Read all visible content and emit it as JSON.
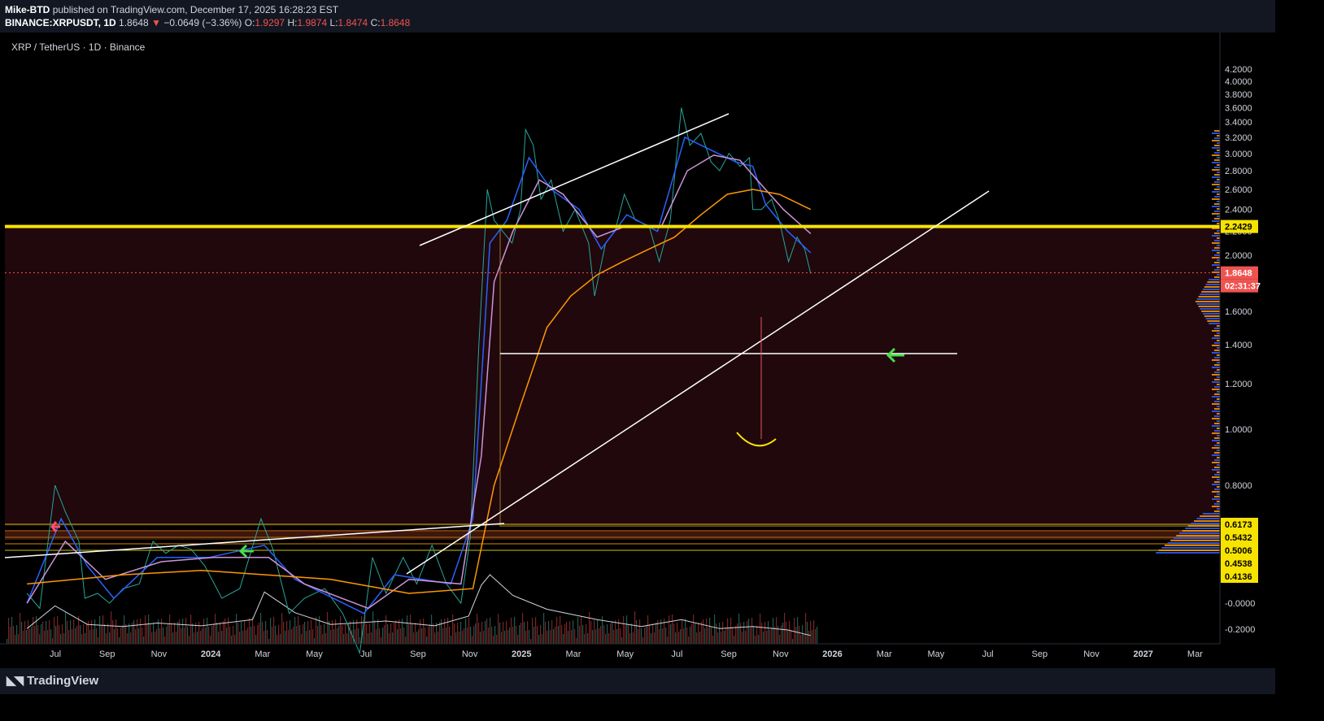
{
  "header": {
    "author": "Mike-BTD",
    "published_text": "published on TradingView.com, December 17, 2025 16:28:23 EST",
    "symbol": "BINANCE:XRPUSDT, 1D",
    "last": "1.8648",
    "arrow": "▼",
    "change": "−0.0649 (−3.36%)",
    "o_label": "O:",
    "o_value": "1.9297",
    "h_label": "H:",
    "h_value": "1.9874",
    "l_label": "L:",
    "l_value": "1.8474",
    "c_label": "C:",
    "c_value": "1.8648"
  },
  "chart_data": {
    "type": "line",
    "title": "XRP / TetherUS · 1D · Binance",
    "y_scale": "log",
    "y_ticks": [
      "4.2000",
      "4.0000",
      "3.8000",
      "3.6000",
      "3.4000",
      "3.2000",
      "3.0000",
      "2.8000",
      "2.6000",
      "2.4000",
      "2.2000",
      "2.0000",
      "1.6000",
      "1.4000",
      "1.2000",
      "1.0000",
      "0.8000"
    ],
    "volume_ticks": [
      "-0.0000",
      "-0.2000"
    ],
    "x_ticks": [
      "Jul",
      "Sep",
      "Nov",
      "2024",
      "Mar",
      "May",
      "Jul",
      "Sep",
      "Nov",
      "2025",
      "Mar",
      "May",
      "Jul",
      "Sep",
      "Nov",
      "2026",
      "Mar",
      "May",
      "Jul",
      "Sep",
      "Nov",
      "2027",
      "Mar"
    ],
    "price_labels": [
      {
        "text": "2.2429",
        "color": "#f7e300"
      },
      {
        "text": "1.8648",
        "color": "#ef5350"
      },
      {
        "text": "02:31:37",
        "color": "#ef5350"
      },
      {
        "text": "0.6173",
        "color": "#f7e300"
      },
      {
        "text": "0.5432",
        "color": "#f7e300"
      },
      {
        "text": "0.5006",
        "color": "#f7e300"
      },
      {
        "text": "0.4538",
        "color": "#f7e300"
      },
      {
        "text": "0.4136",
        "color": "#f7e300"
      }
    ],
    "series": [
      {
        "name": "",
        "color": "#26a69a",
        "points": [
          [
            "2023-06-10",
            0.52
          ],
          [
            "2023-06-25",
            0.49
          ],
          [
            "2023-07-13",
            0.8
          ],
          [
            "2023-07-25",
            0.72
          ],
          [
            "2023-08-10",
            0.64
          ],
          [
            "2023-08-17",
            0.51
          ],
          [
            "2023-09-01",
            0.52
          ],
          [
            "2023-09-15",
            0.5
          ],
          [
            "2023-10-01",
            0.53
          ],
          [
            "2023-10-20",
            0.54
          ],
          [
            "2023-11-05",
            0.64
          ],
          [
            "2023-11-20",
            0.61
          ],
          [
            "2023-12-05",
            0.63
          ],
          [
            "2023-12-20",
            0.62
          ],
          [
            "2024-01-05",
            0.58
          ],
          [
            "2024-01-25",
            0.51
          ],
          [
            "2024-02-15",
            0.53
          ],
          [
            "2024-03-11",
            0.7
          ],
          [
            "2024-03-25",
            0.62
          ],
          [
            "2024-04-13",
            0.48
          ],
          [
            "2024-05-01",
            0.51
          ],
          [
            "2024-05-25",
            0.53
          ],
          [
            "2024-06-15",
            0.48
          ],
          [
            "2024-07-05",
            0.41
          ],
          [
            "2024-07-20",
            0.6
          ],
          [
            "2024-08-05",
            0.52
          ],
          [
            "2024-08-25",
            0.6
          ],
          [
            "2024-09-10",
            0.54
          ],
          [
            "2024-09-28",
            0.63
          ],
          [
            "2024-10-15",
            0.54
          ],
          [
            "2024-11-01",
            0.5
          ],
          [
            "2024-11-12",
            0.65
          ],
          [
            "2024-11-22",
            1.4
          ],
          [
            "2024-12-02",
            2.6
          ],
          [
            "2024-12-10",
            2.3
          ],
          [
            "2024-12-20",
            2.2
          ],
          [
            "2024-12-31",
            2.1
          ],
          [
            "2025-01-10",
            2.4
          ],
          [
            "2025-01-16",
            3.3
          ],
          [
            "2025-01-25",
            3.1
          ],
          [
            "2025-02-03",
            2.5
          ],
          [
            "2025-02-15",
            2.7
          ],
          [
            "2025-03-01",
            2.2
          ],
          [
            "2025-03-15",
            2.4
          ],
          [
            "2025-03-31",
            2.1
          ],
          [
            "2025-04-07",
            1.7
          ],
          [
            "2025-04-20",
            2.1
          ],
          [
            "2025-05-01",
            2.2
          ],
          [
            "2025-05-12",
            2.55
          ],
          [
            "2025-05-25",
            2.3
          ],
          [
            "2025-06-10",
            2.25
          ],
          [
            "2025-06-22",
            1.95
          ],
          [
            "2025-07-05",
            2.3
          ],
          [
            "2025-07-18",
            3.6
          ],
          [
            "2025-07-28",
            3.1
          ],
          [
            "2025-08-10",
            3.25
          ],
          [
            "2025-08-22",
            2.9
          ],
          [
            "2025-09-01",
            2.8
          ],
          [
            "2025-09-12",
            3.0
          ],
          [
            "2025-09-25",
            2.85
          ],
          [
            "2025-10-06",
            2.95
          ],
          [
            "2025-10-10",
            2.4
          ],
          [
            "2025-10-20",
            2.4
          ],
          [
            "2025-11-01",
            2.5
          ],
          [
            "2025-11-10",
            2.3
          ],
          [
            "2025-11-21",
            1.95
          ],
          [
            "2025-12-01",
            2.15
          ],
          [
            "2025-12-10",
            2.05
          ],
          [
            "2025-12-17",
            1.86
          ]
        ]
      },
      {
        "name": "",
        "color": "#2962ff",
        "points": [
          [
            "2023-06-10",
            0.5
          ],
          [
            "2023-07-20",
            0.7
          ],
          [
            "2023-08-20",
            0.58
          ],
          [
            "2023-09-20",
            0.51
          ],
          [
            "2023-11-10",
            0.6
          ],
          [
            "2024-01-10",
            0.6
          ],
          [
            "2024-03-15",
            0.63
          ],
          [
            "2024-04-20",
            0.55
          ],
          [
            "2024-07-10",
            0.48
          ],
          [
            "2024-08-15",
            0.56
          ],
          [
            "2024-10-20",
            0.54
          ],
          [
            "2024-11-15",
            0.7
          ],
          [
            "2024-12-05",
            2.1
          ],
          [
            "2024-12-25",
            2.3
          ],
          [
            "2025-01-20",
            2.95
          ],
          [
            "2025-02-15",
            2.6
          ],
          [
            "2025-03-20",
            2.4
          ],
          [
            "2025-04-15",
            2.05
          ],
          [
            "2025-05-15",
            2.35
          ],
          [
            "2025-06-20",
            2.2
          ],
          [
            "2025-07-22",
            3.2
          ],
          [
            "2025-08-20",
            3.05
          ],
          [
            "2025-09-20",
            2.9
          ],
          [
            "2025-10-10",
            2.85
          ],
          [
            "2025-10-25",
            2.45
          ],
          [
            "2025-11-20",
            2.2
          ],
          [
            "2025-12-17",
            2.02
          ]
        ]
      },
      {
        "name": "",
        "color": "#ce93d8",
        "points": [
          [
            "2023-06-10",
            0.5
          ],
          [
            "2023-07-25",
            0.64
          ],
          [
            "2023-09-10",
            0.55
          ],
          [
            "2023-11-15",
            0.59
          ],
          [
            "2024-01-15",
            0.6
          ],
          [
            "2024-03-20",
            0.6
          ],
          [
            "2024-05-01",
            0.54
          ],
          [
            "2024-07-15",
            0.49
          ],
          [
            "2024-09-01",
            0.55
          ],
          [
            "2024-11-01",
            0.54
          ],
          [
            "2024-11-25",
            0.9
          ],
          [
            "2024-12-10",
            1.8
          ],
          [
            "2025-01-01",
            2.2
          ],
          [
            "2025-02-01",
            2.7
          ],
          [
            "2025-03-01",
            2.55
          ],
          [
            "2025-04-10",
            2.15
          ],
          [
            "2025-05-15",
            2.25
          ],
          [
            "2025-06-25",
            2.25
          ],
          [
            "2025-07-25",
            2.8
          ],
          [
            "2025-08-25",
            2.98
          ],
          [
            "2025-09-25",
            2.92
          ],
          [
            "2025-10-15",
            2.7
          ],
          [
            "2025-11-15",
            2.4
          ],
          [
            "2025-12-17",
            2.18
          ]
        ]
      },
      {
        "name": "",
        "color": "#ff9800",
        "points": [
          [
            "2023-06-10",
            0.54
          ],
          [
            "2023-10-01",
            0.56
          ],
          [
            "2024-01-01",
            0.57
          ],
          [
            "2024-06-01",
            0.55
          ],
          [
            "2024-09-01",
            0.52
          ],
          [
            "2024-11-15",
            0.53
          ],
          [
            "2024-12-10",
            0.8
          ],
          [
            "2025-01-10",
            1.1
          ],
          [
            "2025-02-10",
            1.5
          ],
          [
            "2025-03-10",
            1.7
          ],
          [
            "2025-04-10",
            1.85
          ],
          [
            "2025-05-10",
            1.95
          ],
          [
            "2025-06-10",
            2.05
          ],
          [
            "2025-07-10",
            2.15
          ],
          [
            "2025-08-10",
            2.35
          ],
          [
            "2025-09-10",
            2.55
          ],
          [
            "2025-10-10",
            2.6
          ],
          [
            "2025-11-10",
            2.55
          ],
          [
            "2025-12-17",
            2.4
          ]
        ]
      }
    ],
    "volume_line": [
      [
        "2023-06-10",
        0.22
      ],
      [
        "2023-07-13",
        0.55
      ],
      [
        "2023-08-20",
        0.28
      ],
      [
        "2023-10-01",
        0.25
      ],
      [
        "2023-11-10",
        0.3
      ],
      [
        "2024-01-01",
        0.26
      ],
      [
        "2024-03-01",
        0.35
      ],
      [
        "2024-03-15",
        0.75
      ],
      [
        "2024-04-20",
        0.45
      ],
      [
        "2024-06-01",
        0.28
      ],
      [
        "2024-08-05",
        0.33
      ],
      [
        "2024-10-01",
        0.26
      ],
      [
        "2024-11-10",
        0.4
      ],
      [
        "2024-11-25",
        0.85
      ],
      [
        "2024-12-05",
        1.0
      ],
      [
        "2025-01-01",
        0.7
      ],
      [
        "2025-02-10",
        0.5
      ],
      [
        "2025-04-10",
        0.35
      ],
      [
        "2025-06-01",
        0.25
      ],
      [
        "2025-07-18",
        0.35
      ],
      [
        "2025-09-01",
        0.22
      ],
      [
        "2025-10-10",
        0.25
      ],
      [
        "2025-11-20",
        0.2
      ],
      [
        "2025-12-17",
        0.12
      ]
    ]
  },
  "footer": {
    "logo_text": "TradingView"
  }
}
